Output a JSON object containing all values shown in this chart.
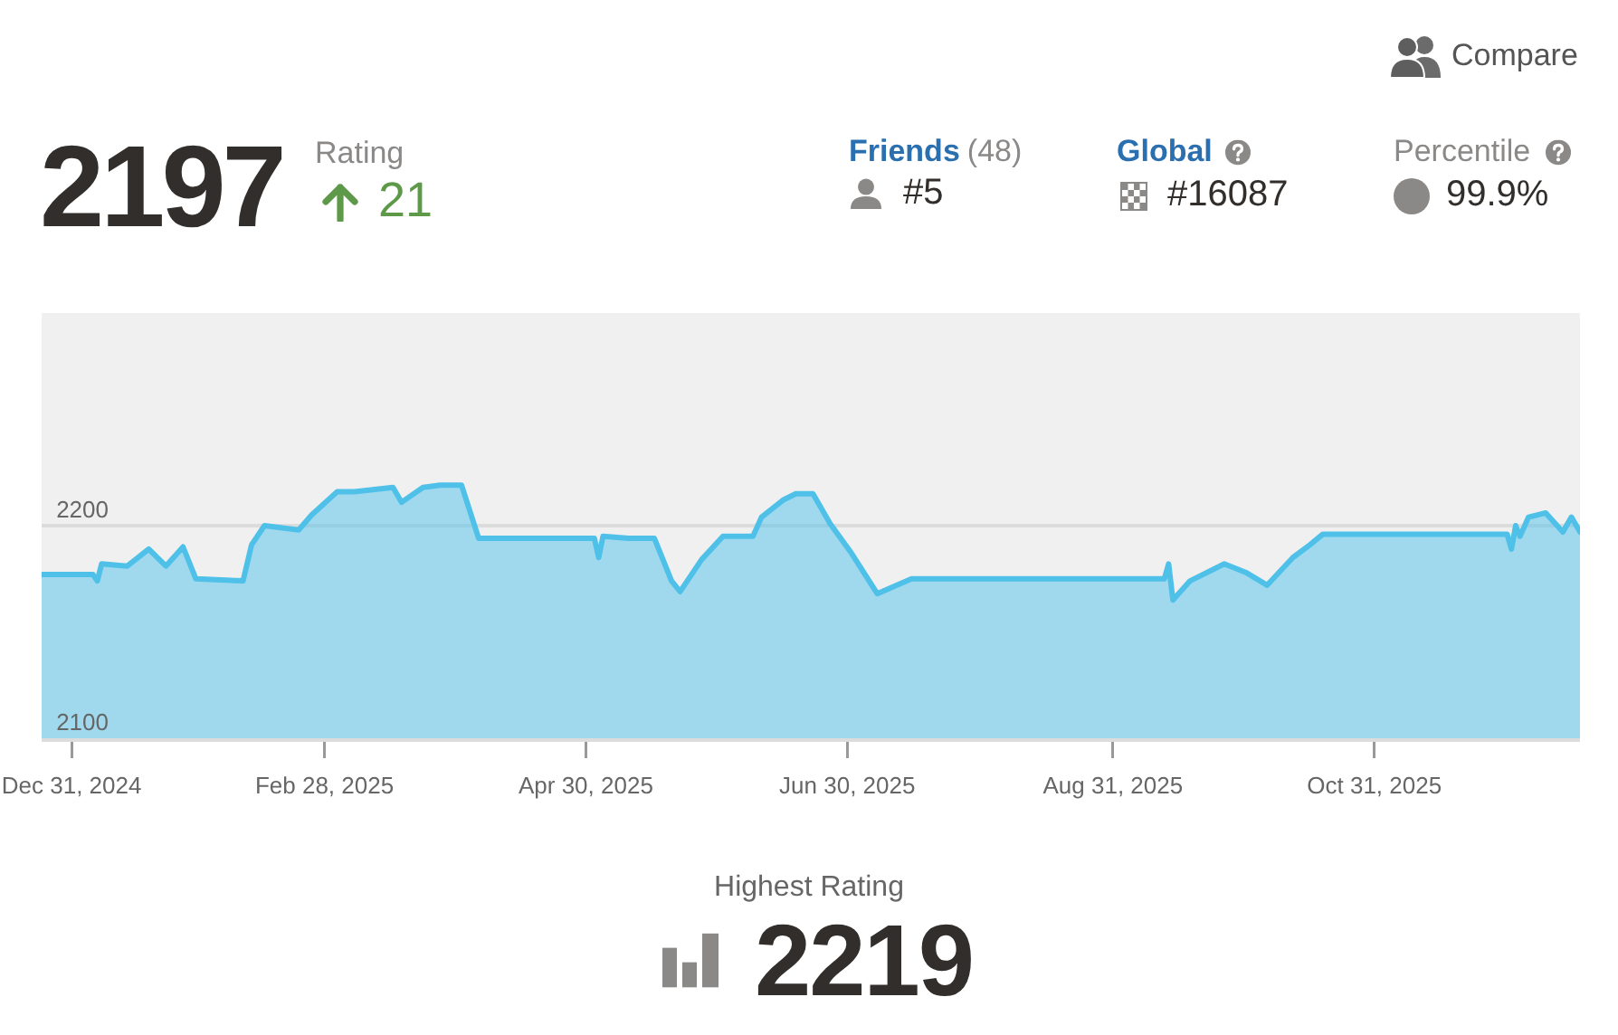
{
  "chart_data": {
    "type": "area",
    "annotations": [
      "Compare",
      "2197",
      "Rating",
      "21",
      "Friends",
      "(48)",
      "#5",
      "Global",
      "#16087",
      "Percentile",
      "99.9%",
      "Highest Rating",
      "2219"
    ],
    "x": [
      "2024-12-24",
      "2025-01-05",
      "2025-01-06",
      "2025-01-07",
      "2025-01-13",
      "2025-01-18",
      "2025-01-22",
      "2025-01-26",
      "2025-01-29",
      "2025-02-09",
      "2025-02-11",
      "2025-02-14",
      "2025-02-22",
      "2025-02-25",
      "2025-03-03",
      "2025-03-07",
      "2025-03-16",
      "2025-03-18",
      "2025-03-23",
      "2025-03-27",
      "2025-04-01",
      "2025-04-05",
      "2025-05-02",
      "2025-05-03",
      "2025-05-04",
      "2025-05-10",
      "2025-05-16",
      "2025-05-20",
      "2025-05-22",
      "2025-05-27",
      "2025-06-01",
      "2025-06-08",
      "2025-06-10",
      "2025-06-15",
      "2025-06-18",
      "2025-06-22",
      "2025-06-26",
      "2025-07-01",
      "2025-07-07",
      "2025-07-15",
      "2025-09-12",
      "2025-09-13",
      "2025-09-14",
      "2025-09-18",
      "2025-09-26",
      "2025-10-01",
      "2025-10-06",
      "2025-10-12",
      "2025-10-16",
      "2025-10-19",
      "2025-12-01",
      "2025-12-02",
      "2025-12-03",
      "2025-12-04",
      "2025-12-06",
      "2025-12-10",
      "2025-12-14",
      "2025-12-16",
      "2025-12-18"
    ],
    "values": [
      2177,
      2177,
      2174,
      2182,
      2181,
      2189,
      2181,
      2190,
      2175,
      2174,
      2191,
      2200,
      2198,
      2205,
      2216,
      2216,
      2218,
      2211,
      2218,
      2219,
      2219,
      2194,
      2194,
      2185,
      2195,
      2194,
      2194,
      2174,
      2169,
      2184,
      2195,
      2195,
      2204,
      2212,
      2215,
      2215,
      2201,
      2187,
      2168,
      2175,
      2175,
      2182,
      2165,
      2174,
      2182,
      2178,
      2172,
      2185,
      2191,
      2196,
      2196,
      2189,
      2200,
      2195,
      2204,
      2206,
      2197,
      2204,
      2197
    ],
    "color": "#4fc1e9",
    "xlim": [
      "2024-12-24",
      "2025-12-18"
    ],
    "xticks": [
      {
        "value": "2024-12-31",
        "label": "Dec 31, 2024"
      },
      {
        "value": "2025-02-28",
        "label": "Feb 28, 2025"
      },
      {
        "value": "2025-04-30",
        "label": "Apr 30, 2025"
      },
      {
        "value": "2025-06-30",
        "label": "Jun 30, 2025"
      },
      {
        "value": "2025-08-31",
        "label": "Aug 31, 2025"
      },
      {
        "value": "2025-10-31",
        "label": "Oct 31, 2025"
      }
    ],
    "ylim": [
      2100,
      2300
    ],
    "yticks": [
      2100,
      2200
    ],
    "grid": "y"
  }
}
